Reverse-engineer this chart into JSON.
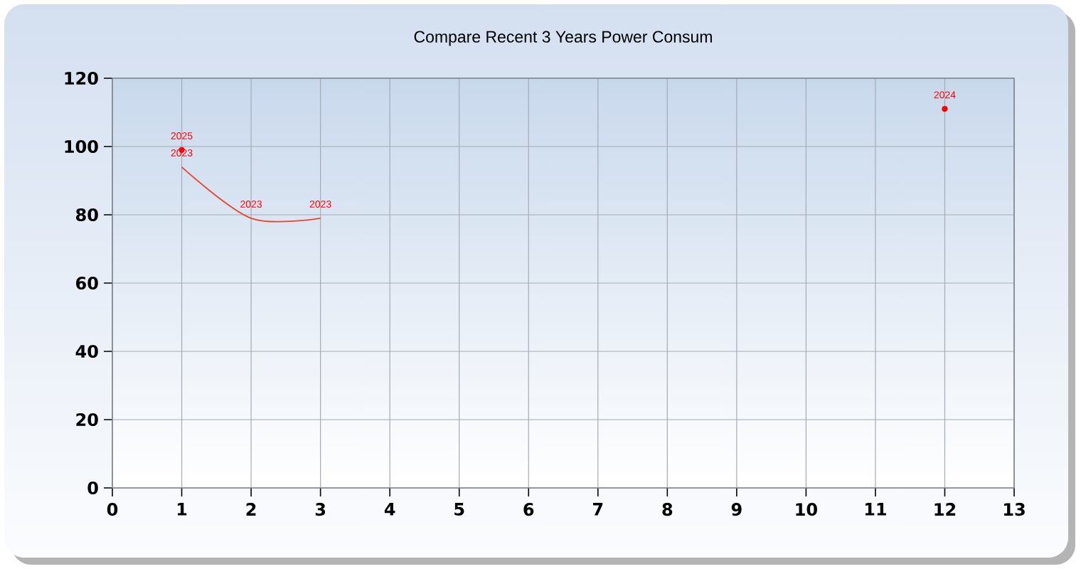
{
  "chart_data": {
    "type": "line",
    "title": "Compare Recent 3 Years Power Consum",
    "series": [
      {
        "name": "2023",
        "color": "#e8452a",
        "x": [
          1,
          2,
          3
        ],
        "values": [
          94,
          79,
          79
        ]
      },
      {
        "name": "2024",
        "color": "#ff0000",
        "x": [
          12
        ],
        "values": [
          111
        ],
        "marker": "circle"
      },
      {
        "name": "2025",
        "color": "#ff0000",
        "x": [
          1
        ],
        "values": [
          99
        ],
        "marker": "circle"
      }
    ],
    "xlim": [
      0,
      13
    ],
    "ylim": [
      0,
      120
    ],
    "xticks": [
      0,
      1,
      2,
      3,
      4,
      5,
      6,
      7,
      8,
      9,
      10,
      11,
      12,
      13
    ],
    "yticks": [
      0,
      20,
      40,
      60,
      80,
      100,
      120
    ],
    "grid": true,
    "marker": "none"
  }
}
